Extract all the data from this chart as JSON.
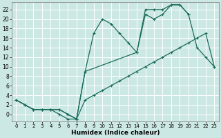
{
  "xlabel": "Humidex (Indice chaleur)",
  "bg_color": "#cce8e4",
  "grid_color": "#b0d8d2",
  "line_color": "#1a6b5a",
  "xlim": [
    -0.5,
    23.5
  ],
  "ylim": [
    -1.5,
    23.5
  ],
  "xticks": [
    0,
    1,
    2,
    3,
    4,
    5,
    6,
    7,
    8,
    9,
    10,
    11,
    12,
    13,
    14,
    15,
    16,
    17,
    18,
    19,
    20,
    21,
    22,
    23
  ],
  "yticks": [
    0,
    2,
    4,
    6,
    8,
    10,
    12,
    14,
    16,
    18,
    20,
    22
  ],
  "curve1_x": [
    0,
    1,
    2,
    3,
    4,
    5,
    6,
    7,
    8,
    9,
    10,
    11,
    12,
    13,
    14,
    15,
    16,
    17,
    18,
    19,
    20
  ],
  "curve1_y": [
    3,
    2,
    1,
    1,
    1,
    1,
    0,
    -1,
    9,
    17,
    20,
    19,
    17,
    15,
    13,
    22,
    22,
    22,
    23,
    23,
    21
  ],
  "curve2_x": [
    0,
    1,
    2,
    3,
    4,
    5,
    6,
    7,
    8,
    14,
    15,
    16,
    17,
    18,
    19,
    20,
    21,
    22,
    23
  ],
  "curve2_y": [
    3,
    2,
    1,
    1,
    1,
    1,
    0,
    -1,
    9,
    13,
    21,
    20,
    21,
    23,
    23,
    21,
    14,
    12,
    10
  ],
  "curve3_x": [
    0,
    1,
    2,
    3,
    4,
    5,
    6,
    7,
    8,
    9,
    10,
    11,
    12,
    13,
    14,
    15,
    16,
    17,
    18,
    19,
    20,
    21,
    22,
    23
  ],
  "curve3_y": [
    3,
    2,
    1,
    1,
    1,
    0,
    -1,
    -1,
    3,
    4,
    5,
    6,
    7,
    8,
    9,
    10,
    11,
    12,
    13,
    14,
    15,
    16,
    17,
    10
  ]
}
